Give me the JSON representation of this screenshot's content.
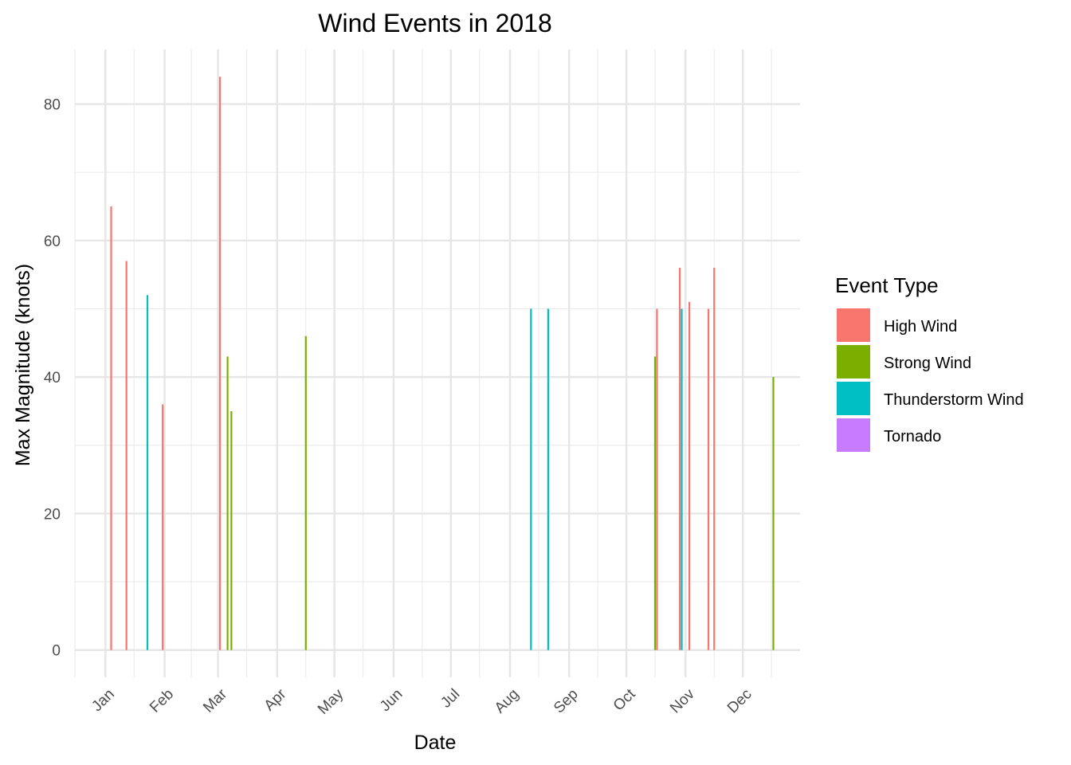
{
  "chart_data": {
    "type": "bar",
    "title": "Wind Events in 2018",
    "xlabel": "Date",
    "ylabel": "Max Magnitude (knots)",
    "ylim": [
      -4,
      88
    ],
    "y_ticks": [
      0,
      20,
      40,
      60,
      80
    ],
    "x_range": [
      "2017-12-16",
      "2018-12-31"
    ],
    "x_ticks": [
      {
        "date": "2018-01-01",
        "label": "Jan"
      },
      {
        "date": "2018-02-01",
        "label": "Feb"
      },
      {
        "date": "2018-03-01",
        "label": "Mar"
      },
      {
        "date": "2018-04-01",
        "label": "Apr"
      },
      {
        "date": "2018-05-01",
        "label": "May"
      },
      {
        "date": "2018-06-01",
        "label": "Jun"
      },
      {
        "date": "2018-07-01",
        "label": "Jul"
      },
      {
        "date": "2018-08-01",
        "label": "Aug"
      },
      {
        "date": "2018-09-01",
        "label": "Sep"
      },
      {
        "date": "2018-10-01",
        "label": "Oct"
      },
      {
        "date": "2018-11-01",
        "label": "Nov"
      },
      {
        "date": "2018-12-01",
        "label": "Dec"
      }
    ],
    "grid": true,
    "legend_position": "right",
    "legend_title": "Event Type",
    "series": [
      {
        "name": "High Wind",
        "color": "#F8766D",
        "points": [
          {
            "x": "2018-01-04",
            "y": 65
          },
          {
            "x": "2018-01-12",
            "y": 57
          },
          {
            "x": "2018-01-31",
            "y": 36
          },
          {
            "x": "2018-03-02",
            "y": 84
          },
          {
            "x": "2018-10-17",
            "y": 50
          },
          {
            "x": "2018-10-29",
            "y": 56
          },
          {
            "x": "2018-11-03",
            "y": 51
          },
          {
            "x": "2018-11-13",
            "y": 50
          },
          {
            "x": "2018-11-16",
            "y": 56
          }
        ]
      },
      {
        "name": "Strong Wind",
        "color": "#7CAE00",
        "points": [
          {
            "x": "2018-03-06",
            "y": 43
          },
          {
            "x": "2018-03-08",
            "y": 35
          },
          {
            "x": "2018-04-16",
            "y": 46
          },
          {
            "x": "2018-10-16",
            "y": 43
          },
          {
            "x": "2018-12-17",
            "y": 40
          }
        ]
      },
      {
        "name": "Thunderstorm Wind",
        "color": "#00BFC4",
        "points": [
          {
            "x": "2018-01-23",
            "y": 52
          },
          {
            "x": "2018-08-12",
            "y": 50
          },
          {
            "x": "2018-08-21",
            "y": 50
          },
          {
            "x": "2018-10-30",
            "y": 50
          }
        ]
      },
      {
        "name": "Tornado",
        "color": "#C77CFF",
        "points": []
      }
    ]
  }
}
